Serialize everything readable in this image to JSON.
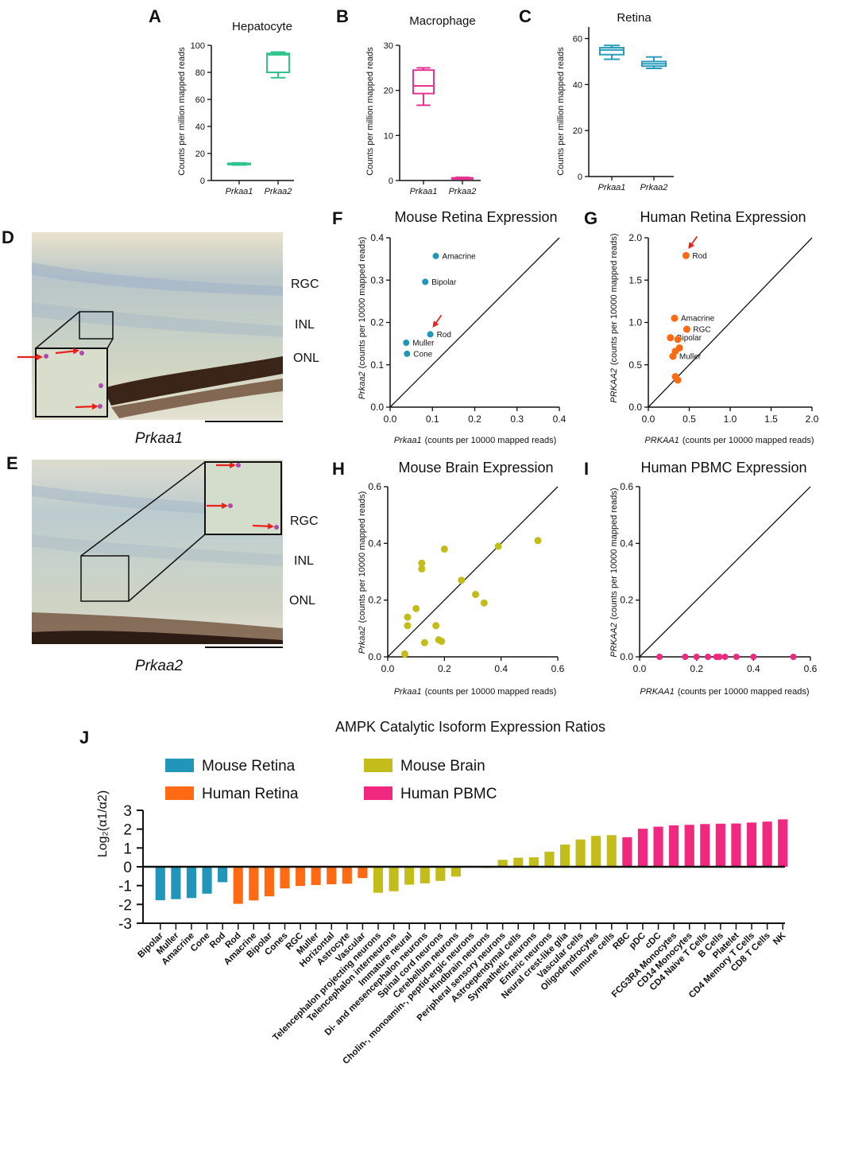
{
  "panels": {
    "A": {
      "letter": "A",
      "title": "Hepatocyte",
      "ylabel": "Counts per million mapped reads",
      "yticks": [
        0,
        20,
        40,
        60,
        80,
        100
      ]
    },
    "B": {
      "letter": "B",
      "title": "Macrophage",
      "ylabel": "Counts per million mapped reads",
      "yticks": [
        0,
        10,
        20,
        30
      ]
    },
    "C": {
      "letter": "C",
      "title": "Retina",
      "ylabel": "Counts per million mapped reads",
      "yticks": [
        0,
        20,
        40,
        60
      ]
    },
    "D": {
      "letter": "D",
      "gene": "Prkaa1",
      "layers": [
        "RGC",
        "INL",
        "ONL"
      ]
    },
    "E": {
      "letter": "E",
      "gene": "Prkaa2",
      "layers": [
        "RGC",
        "INL",
        "ONL"
      ]
    },
    "F": {
      "letter": "F",
      "title": "Mouse Retina Expression",
      "xlabel_gene": "Prkaa1",
      "ylabel_gene": "Prkaa2",
      "unit": "(counts per 10000 mapped reads)",
      "ticks": [
        "0.0",
        "0.1",
        "0.2",
        "0.3",
        "0.4"
      ]
    },
    "G": {
      "letter": "G",
      "title": "Human Retina Expression",
      "xlabel_gene": "PRKAA1",
      "ylabel_gene": "PRKAA2",
      "unit": "(counts per 10000 mapped reads)",
      "ticks": [
        "0.0",
        "0.5",
        "1.0",
        "1.5",
        "2.0"
      ]
    },
    "H": {
      "letter": "H",
      "title": "Mouse Brain Expression",
      "xlabel_gene": "Prkaa1",
      "ylabel_gene": "Prkaa2",
      "unit": "(counts per 10000 mapped reads)",
      "ticks": [
        "0.0",
        "0.2",
        "0.4",
        "0.6"
      ]
    },
    "I": {
      "letter": "I",
      "title": "Human PBMC Expression",
      "xlabel_gene": "PRKAA1",
      "ylabel_gene": "PRKAA2",
      "unit": "(counts per 10000 mapped reads)",
      "ticks": [
        "0.0",
        "0.2",
        "0.4",
        "0.6"
      ]
    },
    "J": {
      "letter": "J",
      "title": "AMPK Catalytic Isoform Expression Ratios",
      "ylabel": "Log₂(α1/α2)",
      "yticks": [
        "-3",
        "-2",
        "-1",
        "0",
        "1",
        "2",
        "3"
      ]
    }
  },
  "colors": {
    "hepatocyte": "#2ec48a",
    "macrophage": "#e8338f",
    "retina_box": "#2a9dbd",
    "mouse_retina": "#2196b8",
    "human_retina": "#ff6a12",
    "mouse_brain": "#c2bd1a",
    "human_pbmc": "#f0287f",
    "arrow": "#e8231c"
  },
  "chart_data": [
    {
      "panel": "A",
      "type": "box",
      "title": "Hepatocyte",
      "ylabel": "Counts per million mapped reads",
      "ylim": [
        0,
        100
      ],
      "categories": [
        "Prkaa1",
        "Prkaa2"
      ],
      "boxes": [
        {
          "category": "Prkaa1",
          "min": 11.5,
          "q1": 12,
          "median": 12.3,
          "q3": 12.7,
          "max": 13
        },
        {
          "category": "Prkaa2",
          "min": 76,
          "q1": 80,
          "median": 93,
          "q3": 94,
          "max": 95
        }
      ]
    },
    {
      "panel": "B",
      "type": "box",
      "title": "Macrophage",
      "ylabel": "Counts per million mapped reads",
      "ylim": [
        0,
        30
      ],
      "categories": [
        "Prkaa1",
        "Prkaa2"
      ],
      "boxes": [
        {
          "category": "Prkaa1",
          "min": 16.7,
          "q1": 19.3,
          "median": 21,
          "q3": 24.5,
          "max": 25
        },
        {
          "category": "Prkaa2",
          "min": 0.3,
          "q1": 0.4,
          "median": 0.5,
          "q3": 0.6,
          "max": 0.7
        }
      ]
    },
    {
      "panel": "C",
      "type": "box",
      "title": "Retina",
      "ylabel": "Counts per million mapped reads",
      "ylim": [
        0,
        65
      ],
      "categories": [
        "Prkaa1",
        "Prkaa2"
      ],
      "boxes": [
        {
          "category": "Prkaa1",
          "min": 51,
          "q1": 53,
          "median": 55,
          "q3": 56,
          "max": 57
        },
        {
          "category": "Prkaa2",
          "min": 47,
          "q1": 48,
          "median": 49,
          "q3": 50,
          "max": 52
        }
      ]
    },
    {
      "panel": "F",
      "type": "scatter",
      "title": "Mouse Retina Expression",
      "xlabel": "Prkaa1 (counts per 10000 mapped reads)",
      "ylabel": "Prkaa2 (counts per 10000 mapped reads)",
      "xlim": [
        0,
        0.4
      ],
      "ylim": [
        0,
        0.4
      ],
      "identity_line": true,
      "points": [
        {
          "label": "Amacrine",
          "x": 0.108,
          "y": 0.357
        },
        {
          "label": "Bipolar",
          "x": 0.083,
          "y": 0.296
        },
        {
          "label": "Rod",
          "x": 0.095,
          "y": 0.172,
          "arrow": true
        },
        {
          "label": "Muller",
          "x": 0.038,
          "y": 0.152
        },
        {
          "label": "Cone",
          "x": 0.04,
          "y": 0.126
        }
      ]
    },
    {
      "panel": "G",
      "type": "scatter",
      "title": "Human Retina Expression",
      "xlabel": "PRKAA1 (counts per 10000 mapped reads)",
      "ylabel": "PRKAA2 (counts per 10000 mapped reads)",
      "xlim": [
        0,
        2.0
      ],
      "ylim": [
        0,
        2.0
      ],
      "identity_line": true,
      "points": [
        {
          "label": "Rod",
          "x": 0.46,
          "y": 1.79,
          "arrow": true
        },
        {
          "label": "Amacrine",
          "x": 0.32,
          "y": 1.05
        },
        {
          "label": "RGC",
          "x": 0.47,
          "y": 0.92
        },
        {
          "label": "Bipolar",
          "x": 0.27,
          "y": 0.82
        },
        {
          "label": "",
          "x": 0.36,
          "y": 0.8
        },
        {
          "label": "",
          "x": 0.38,
          "y": 0.7
        },
        {
          "label": "",
          "x": 0.33,
          "y": 0.66
        },
        {
          "label": "Muller",
          "x": 0.3,
          "y": 0.6
        },
        {
          "label": "",
          "x": 0.33,
          "y": 0.36
        },
        {
          "label": "",
          "x": 0.36,
          "y": 0.32
        }
      ]
    },
    {
      "panel": "H",
      "type": "scatter",
      "title": "Mouse Brain Expression",
      "xlabel": "Prkaa1 (counts per 10000 mapped reads)",
      "ylabel": "Prkaa2 (counts per 10000 mapped reads)",
      "xlim": [
        0,
        0.6
      ],
      "ylim": [
        0,
        0.6
      ],
      "identity_line": true,
      "points": [
        {
          "x": 0.53,
          "y": 0.41
        },
        {
          "x": 0.39,
          "y": 0.39
        },
        {
          "x": 0.2,
          "y": 0.38
        },
        {
          "x": 0.12,
          "y": 0.33
        },
        {
          "x": 0.12,
          "y": 0.31
        },
        {
          "x": 0.26,
          "y": 0.27
        },
        {
          "x": 0.31,
          "y": 0.22
        },
        {
          "x": 0.34,
          "y": 0.19
        },
        {
          "x": 0.1,
          "y": 0.17
        },
        {
          "x": 0.07,
          "y": 0.14
        },
        {
          "x": 0.17,
          "y": 0.11
        },
        {
          "x": 0.07,
          "y": 0.11
        },
        {
          "x": 0.18,
          "y": 0.06
        },
        {
          "x": 0.19,
          "y": 0.055
        },
        {
          "x": 0.13,
          "y": 0.05
        },
        {
          "x": 0.06,
          "y": 0.01
        }
      ]
    },
    {
      "panel": "I",
      "type": "scatter",
      "title": "Human PBMC Expression",
      "xlabel": "PRKAA1 (counts per 10000 mapped reads)",
      "ylabel": "PRKAA2 (counts per 10000 mapped reads)",
      "xlim": [
        0,
        0.6
      ],
      "ylim": [
        0,
        0.6
      ],
      "identity_line": true,
      "points": [
        {
          "x": 0.07,
          "y": 0
        },
        {
          "x": 0.16,
          "y": 0
        },
        {
          "x": 0.2,
          "y": 0
        },
        {
          "x": 0.24,
          "y": 0
        },
        {
          "x": 0.27,
          "y": 0
        },
        {
          "x": 0.28,
          "y": 0
        },
        {
          "x": 0.3,
          "y": 0
        },
        {
          "x": 0.34,
          "y": 0
        },
        {
          "x": 0.4,
          "y": 0
        },
        {
          "x": 0.54,
          "y": 0
        }
      ]
    },
    {
      "panel": "J",
      "type": "bar",
      "title": "AMPK Catalytic Isoform Expression Ratios",
      "ylabel": "Log₂(α1/α2)",
      "ylim": [
        -3,
        3
      ],
      "legend": [
        {
          "name": "Mouse Retina",
          "group": "mouse_retina"
        },
        {
          "name": "Mouse Brain",
          "group": "mouse_brain"
        },
        {
          "name": "Human Retina",
          "group": "human_retina"
        },
        {
          "name": "Human PBMC",
          "group": "human_pbmc"
        }
      ],
      "bars": [
        {
          "category": "Bipolar",
          "value": -1.78,
          "group": "mouse_retina"
        },
        {
          "category": "Muller",
          "value": -1.72,
          "group": "mouse_retina"
        },
        {
          "category": "Amacrine",
          "value": -1.66,
          "group": "mouse_retina"
        },
        {
          "category": "Cone",
          "value": -1.43,
          "group": "mouse_retina"
        },
        {
          "category": "Rod",
          "value": -0.82,
          "group": "mouse_retina"
        },
        {
          "category": "Rod",
          "value": -1.97,
          "group": "human_retina"
        },
        {
          "category": "Amacrine",
          "value": -1.79,
          "group": "human_retina"
        },
        {
          "category": "Bipolar",
          "value": -1.57,
          "group": "human_retina"
        },
        {
          "category": "Cones",
          "value": -1.15,
          "group": "human_retina"
        },
        {
          "category": "RGC",
          "value": -1.02,
          "group": "human_retina"
        },
        {
          "category": "Muller",
          "value": -0.97,
          "group": "human_retina"
        },
        {
          "category": "Horizontal",
          "value": -0.93,
          "group": "human_retina"
        },
        {
          "category": "Astrocyte",
          "value": -0.9,
          "group": "human_retina"
        },
        {
          "category": "Vascular",
          "value": -0.6,
          "group": "human_retina"
        },
        {
          "category": "Telencephalon projecting neurons",
          "value": -1.38,
          "group": "mouse_brain"
        },
        {
          "category": "Telencephalon interneurons",
          "value": -1.3,
          "group": "mouse_brain"
        },
        {
          "category": "Immature neural",
          "value": -0.95,
          "group": "mouse_brain"
        },
        {
          "category": "Di- and mesencephalon neurons",
          "value": -0.88,
          "group": "mouse_brain"
        },
        {
          "category": "Spinal cord neurons",
          "value": -0.75,
          "group": "mouse_brain"
        },
        {
          "category": "Cerebellum neurons",
          "value": -0.52,
          "group": "mouse_brain"
        },
        {
          "category": "Cholin-, monoamin-, peptid-ergic neurons",
          "value": 0.02,
          "group": "mouse_brain"
        },
        {
          "category": "Hindbrain neurons",
          "value": -0.06,
          "group": "mouse_brain"
        },
        {
          "category": "Peripheral sensory neurons",
          "value": 0.37,
          "group": "mouse_brain"
        },
        {
          "category": "Astroependymal cells",
          "value": 0.48,
          "group": "mouse_brain"
        },
        {
          "category": "Sympathetic neurons",
          "value": 0.5,
          "group": "mouse_brain"
        },
        {
          "category": "Enteric neurons",
          "value": 0.8,
          "group": "mouse_brain"
        },
        {
          "category": "Neural crest-like glia",
          "value": 1.18,
          "group": "mouse_brain"
        },
        {
          "category": "Vascular cells",
          "value": 1.45,
          "group": "mouse_brain"
        },
        {
          "category": "Oligodendrocytes",
          "value": 1.64,
          "group": "mouse_brain"
        },
        {
          "category": "Immune cells",
          "value": 1.68,
          "group": "mouse_brain"
        },
        {
          "category": "RBC",
          "value": 1.57,
          "group": "human_pbmc"
        },
        {
          "category": "pDC",
          "value": 2.02,
          "group": "human_pbmc"
        },
        {
          "category": "cDC",
          "value": 2.13,
          "group": "human_pbmc"
        },
        {
          "category": "FCG3RA Monocytes",
          "value": 2.2,
          "group": "human_pbmc"
        },
        {
          "category": "CD14 Monocytes",
          "value": 2.23,
          "group": "human_pbmc"
        },
        {
          "category": "CD4 Naive T Cells",
          "value": 2.27,
          "group": "human_pbmc"
        },
        {
          "category": "B Cells",
          "value": 2.29,
          "group": "human_pbmc"
        },
        {
          "category": "Platelet",
          "value": 2.3,
          "group": "human_pbmc"
        },
        {
          "category": "CD4 Memory T Cells",
          "value": 2.35,
          "group": "human_pbmc"
        },
        {
          "category": "CD8 T Cells",
          "value": 2.4,
          "group": "human_pbmc"
        },
        {
          "category": "NK",
          "value": 2.52,
          "group": "human_pbmc"
        }
      ]
    }
  ]
}
